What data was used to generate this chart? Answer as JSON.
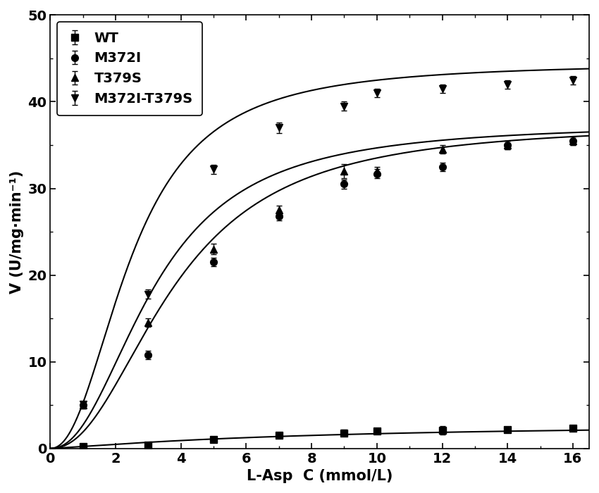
{
  "series": [
    {
      "label": "WT",
      "marker": "s",
      "x": [
        1.0,
        3.0,
        5.0,
        7.0,
        9.0,
        10.0,
        12.0,
        14.0,
        16.0
      ],
      "y": [
        0.25,
        0.35,
        1.0,
        1.5,
        1.8,
        2.0,
        2.1,
        2.2,
        2.3
      ],
      "yerr": [
        0.15,
        0.1,
        0.2,
        0.2,
        0.35,
        0.3,
        0.5,
        0.2,
        0.3
      ],
      "Vmax": 3.0,
      "Km": 8.0,
      "n": 1.2
    },
    {
      "label": "M372I",
      "marker": "o",
      "x": [
        1.0,
        3.0,
        5.0,
        7.0,
        9.0,
        10.0,
        12.0,
        14.0,
        16.0
      ],
      "y": [
        5.0,
        10.8,
        21.5,
        26.8,
        30.5,
        31.7,
        32.5,
        35.0,
        35.5
      ],
      "yerr": [
        0.4,
        0.5,
        0.5,
        0.5,
        0.5,
        0.5,
        0.5,
        0.5,
        0.5
      ],
      "Vmax": 37.5,
      "Km": 3.8,
      "n": 2.2
    },
    {
      "label": "T379S",
      "marker": "^",
      "x": [
        1.0,
        3.0,
        5.0,
        7.0,
        9.0,
        10.0,
        12.0,
        14.0,
        16.0
      ],
      "y": [
        5.0,
        14.5,
        23.0,
        27.5,
        32.0,
        32.0,
        34.5,
        35.0,
        35.5
      ],
      "yerr": [
        0.4,
        0.5,
        0.6,
        0.5,
        0.8,
        0.5,
        0.5,
        0.5,
        0.5
      ],
      "Vmax": 37.5,
      "Km": 3.2,
      "n": 2.2
    },
    {
      "label": "M372I-T379S",
      "marker": "v",
      "x": [
        1.0,
        3.0,
        5.0,
        7.0,
        9.0,
        10.0,
        12.0,
        14.0,
        16.0
      ],
      "y": [
        5.1,
        17.8,
        32.2,
        37.0,
        39.5,
        41.0,
        41.5,
        42.0,
        42.5
      ],
      "yerr": [
        0.3,
        0.5,
        0.5,
        0.6,
        0.5,
        0.5,
        0.5,
        0.5,
        0.5
      ],
      "Vmax": 44.5,
      "Km": 2.5,
      "n": 2.2
    }
  ],
  "xlabel": "L-Asp  C (mmol/L)",
  "ylabel": "V (U/mg·min⁻¹)",
  "xlim": [
    0,
    16.5
  ],
  "ylim": [
    0,
    50
  ],
  "xticks": [
    0,
    2,
    4,
    6,
    8,
    10,
    12,
    14,
    16
  ],
  "yticks": [
    0,
    10,
    20,
    30,
    40,
    50
  ],
  "color": "#000000",
  "linewidth": 1.5,
  "markersize": 7,
  "legend_fontsize": 14,
  "axis_fontsize": 15,
  "tick_fontsize": 14
}
